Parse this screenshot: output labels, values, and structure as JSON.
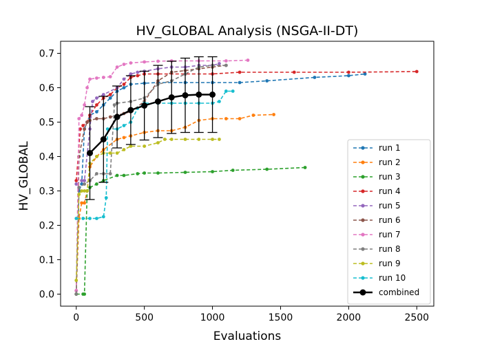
{
  "chart_data": {
    "type": "line",
    "title": "HV_GLOBAL Analysis (NSGA-II-DT)",
    "xlabel": "Evaluations",
    "ylabel": "HV_GLOBAL",
    "xlim": [
      -115,
      2625
    ],
    "ylim": [
      -0.035,
      0.735
    ],
    "xticks": [
      0,
      500,
      1000,
      1500,
      2000,
      2500
    ],
    "yticks": [
      0.0,
      0.1,
      0.2,
      0.3,
      0.4,
      0.5,
      0.6,
      0.7
    ],
    "yticks_labels": [
      "0.0",
      "0.1",
      "0.2",
      "0.3",
      "0.4",
      "0.5",
      "0.6",
      "0.7"
    ],
    "grid": false,
    "legend_position": "lower right",
    "series": [
      {
        "name": "run 1",
        "color": "#1f77b4",
        "points": [
          [
            0,
            0.0
          ],
          [
            20,
            0.3
          ],
          [
            40,
            0.32
          ],
          [
            60,
            0.48
          ],
          [
            80,
            0.5
          ],
          [
            100,
            0.52
          ],
          [
            150,
            0.53
          ],
          [
            200,
            0.55
          ],
          [
            250,
            0.57
          ],
          [
            300,
            0.59
          ],
          [
            350,
            0.6
          ],
          [
            400,
            0.61
          ],
          [
            500,
            0.613
          ],
          [
            600,
            0.615
          ],
          [
            800,
            0.615
          ],
          [
            1000,
            0.615
          ],
          [
            1200,
            0.615
          ],
          [
            1400,
            0.62
          ],
          [
            1750,
            0.63
          ],
          [
            2000,
            0.635
          ],
          [
            2120,
            0.64
          ]
        ]
      },
      {
        "name": "run 2",
        "color": "#ff7f0e",
        "points": [
          [
            0,
            0.0
          ],
          [
            20,
            0.22
          ],
          [
            40,
            0.265
          ],
          [
            60,
            0.265
          ],
          [
            80,
            0.3
          ],
          [
            100,
            0.37
          ],
          [
            150,
            0.4
          ],
          [
            200,
            0.42
          ],
          [
            300,
            0.45
          ],
          [
            350,
            0.455
          ],
          [
            400,
            0.46
          ],
          [
            500,
            0.47
          ],
          [
            600,
            0.475
          ],
          [
            700,
            0.475
          ],
          [
            800,
            0.485
          ],
          [
            900,
            0.505
          ],
          [
            1000,
            0.51
          ],
          [
            1100,
            0.51
          ],
          [
            1200,
            0.51
          ],
          [
            1300,
            0.52
          ],
          [
            1450,
            0.522
          ]
        ]
      },
      {
        "name": "run 3",
        "color": "#2ca02c",
        "points": [
          [
            0,
            0.0
          ],
          [
            50,
            0.0
          ],
          [
            60,
            0.0
          ],
          [
            80,
            0.3
          ],
          [
            100,
            0.31
          ],
          [
            150,
            0.32
          ],
          [
            200,
            0.33
          ],
          [
            300,
            0.345
          ],
          [
            350,
            0.345
          ],
          [
            450,
            0.35
          ],
          [
            500,
            0.352
          ],
          [
            600,
            0.352
          ],
          [
            800,
            0.354
          ],
          [
            1000,
            0.356
          ],
          [
            1150,
            0.36
          ],
          [
            1400,
            0.363
          ],
          [
            1680,
            0.368
          ]
        ]
      },
      {
        "name": "run 4",
        "color": "#d62728",
        "points": [
          [
            0,
            0.33
          ],
          [
            30,
            0.48
          ],
          [
            50,
            0.49
          ],
          [
            80,
            0.5
          ],
          [
            100,
            0.52
          ],
          [
            150,
            0.55
          ],
          [
            200,
            0.57
          ],
          [
            250,
            0.58
          ],
          [
            300,
            0.6
          ],
          [
            350,
            0.61
          ],
          [
            400,
            0.63
          ],
          [
            450,
            0.635
          ],
          [
            500,
            0.64
          ],
          [
            600,
            0.64
          ],
          [
            800,
            0.64
          ],
          [
            1000,
            0.64
          ],
          [
            1200,
            0.645
          ],
          [
            1600,
            0.645
          ],
          [
            2000,
            0.645
          ],
          [
            2500,
            0.647
          ]
        ]
      },
      {
        "name": "run 5",
        "color": "#9467bd",
        "points": [
          [
            0,
            0.32
          ],
          [
            40,
            0.33
          ],
          [
            60,
            0.33
          ],
          [
            100,
            0.48
          ],
          [
            120,
            0.56
          ],
          [
            150,
            0.57
          ],
          [
            200,
            0.58
          ],
          [
            300,
            0.6
          ],
          [
            350,
            0.625
          ],
          [
            400,
            0.64
          ],
          [
            450,
            0.645
          ],
          [
            500,
            0.648
          ],
          [
            600,
            0.655
          ],
          [
            700,
            0.66
          ],
          [
            800,
            0.66
          ],
          [
            900,
            0.665
          ],
          [
            1000,
            0.665
          ],
          [
            1050,
            0.67
          ]
        ]
      },
      {
        "name": "run 6",
        "color": "#8c564b",
        "points": [
          [
            0,
            0.01
          ],
          [
            20,
            0.4
          ],
          [
            60,
            0.48
          ],
          [
            80,
            0.5
          ],
          [
            100,
            0.505
          ],
          [
            150,
            0.51
          ],
          [
            200,
            0.51
          ],
          [
            250,
            0.515
          ],
          [
            300,
            0.52
          ],
          [
            350,
            0.525
          ],
          [
            400,
            0.53
          ],
          [
            500,
            0.56
          ],
          [
            600,
            0.62
          ],
          [
            700,
            0.645
          ],
          [
            800,
            0.65
          ],
          [
            900,
            0.655
          ],
          [
            1000,
            0.66
          ],
          [
            1100,
            0.665
          ]
        ]
      },
      {
        "name": "run 7",
        "color": "#e377c2",
        "points": [
          [
            0,
            0.01
          ],
          [
            20,
            0.51
          ],
          [
            40,
            0.52
          ],
          [
            60,
            0.55
          ],
          [
            80,
            0.6
          ],
          [
            100,
            0.625
          ],
          [
            150,
            0.628
          ],
          [
            200,
            0.63
          ],
          [
            250,
            0.632
          ],
          [
            300,
            0.66
          ],
          [
            350,
            0.668
          ],
          [
            400,
            0.672
          ],
          [
            500,
            0.675
          ],
          [
            600,
            0.677
          ],
          [
            700,
            0.678
          ],
          [
            900,
            0.678
          ],
          [
            1100,
            0.678
          ],
          [
            1260,
            0.68
          ]
        ]
      },
      {
        "name": "run 8",
        "color": "#7f7f7f",
        "points": [
          [
            0,
            0.0
          ],
          [
            20,
            0.31
          ],
          [
            60,
            0.32
          ],
          [
            100,
            0.33
          ],
          [
            150,
            0.35
          ],
          [
            200,
            0.35
          ],
          [
            250,
            0.35
          ],
          [
            280,
            0.55
          ],
          [
            300,
            0.555
          ],
          [
            400,
            0.56
          ],
          [
            500,
            0.57
          ],
          [
            600,
            0.61
          ],
          [
            700,
            0.62
          ],
          [
            800,
            0.64
          ],
          [
            900,
            0.66
          ],
          [
            1000,
            0.665
          ],
          [
            1100,
            0.665
          ]
        ]
      },
      {
        "name": "run 9",
        "color": "#bcbd22",
        "points": [
          [
            0,
            0.04
          ],
          [
            20,
            0.29
          ],
          [
            40,
            0.3
          ],
          [
            60,
            0.3
          ],
          [
            80,
            0.3
          ],
          [
            100,
            0.38
          ],
          [
            150,
            0.4
          ],
          [
            200,
            0.41
          ],
          [
            250,
            0.41
          ],
          [
            300,
            0.41
          ],
          [
            350,
            0.42
          ],
          [
            400,
            0.43
          ],
          [
            500,
            0.43
          ],
          [
            600,
            0.44
          ],
          [
            650,
            0.45
          ],
          [
            700,
            0.45
          ],
          [
            800,
            0.45
          ],
          [
            900,
            0.45
          ],
          [
            1000,
            0.45
          ],
          [
            1050,
            0.45
          ]
        ]
      },
      {
        "name": "run 10",
        "color": "#17becf",
        "points": [
          [
            0,
            0.22
          ],
          [
            50,
            0.22
          ],
          [
            100,
            0.22
          ],
          [
            150,
            0.22
          ],
          [
            200,
            0.225
          ],
          [
            220,
            0.28
          ],
          [
            230,
            0.48
          ],
          [
            300,
            0.48
          ],
          [
            350,
            0.49
          ],
          [
            400,
            0.5
          ],
          [
            450,
            0.54
          ],
          [
            500,
            0.555
          ],
          [
            600,
            0.555
          ],
          [
            700,
            0.555
          ],
          [
            800,
            0.555
          ],
          [
            900,
            0.555
          ],
          [
            1000,
            0.555
          ],
          [
            1050,
            0.56
          ],
          [
            1100,
            0.59
          ],
          [
            1150,
            0.59
          ]
        ]
      }
    ],
    "combined": {
      "name": "combined",
      "color": "#000000",
      "x": [
        100,
        200,
        300,
        400,
        500,
        600,
        700,
        800,
        900,
        1000
      ],
      "mean": [
        0.41,
        0.45,
        0.515,
        0.535,
        0.548,
        0.56,
        0.572,
        0.578,
        0.58,
        0.58
      ],
      "err": [
        0.135,
        0.125,
        0.09,
        0.1,
        0.1,
        0.105,
        0.105,
        0.108,
        0.11,
        0.11
      ]
    }
  }
}
